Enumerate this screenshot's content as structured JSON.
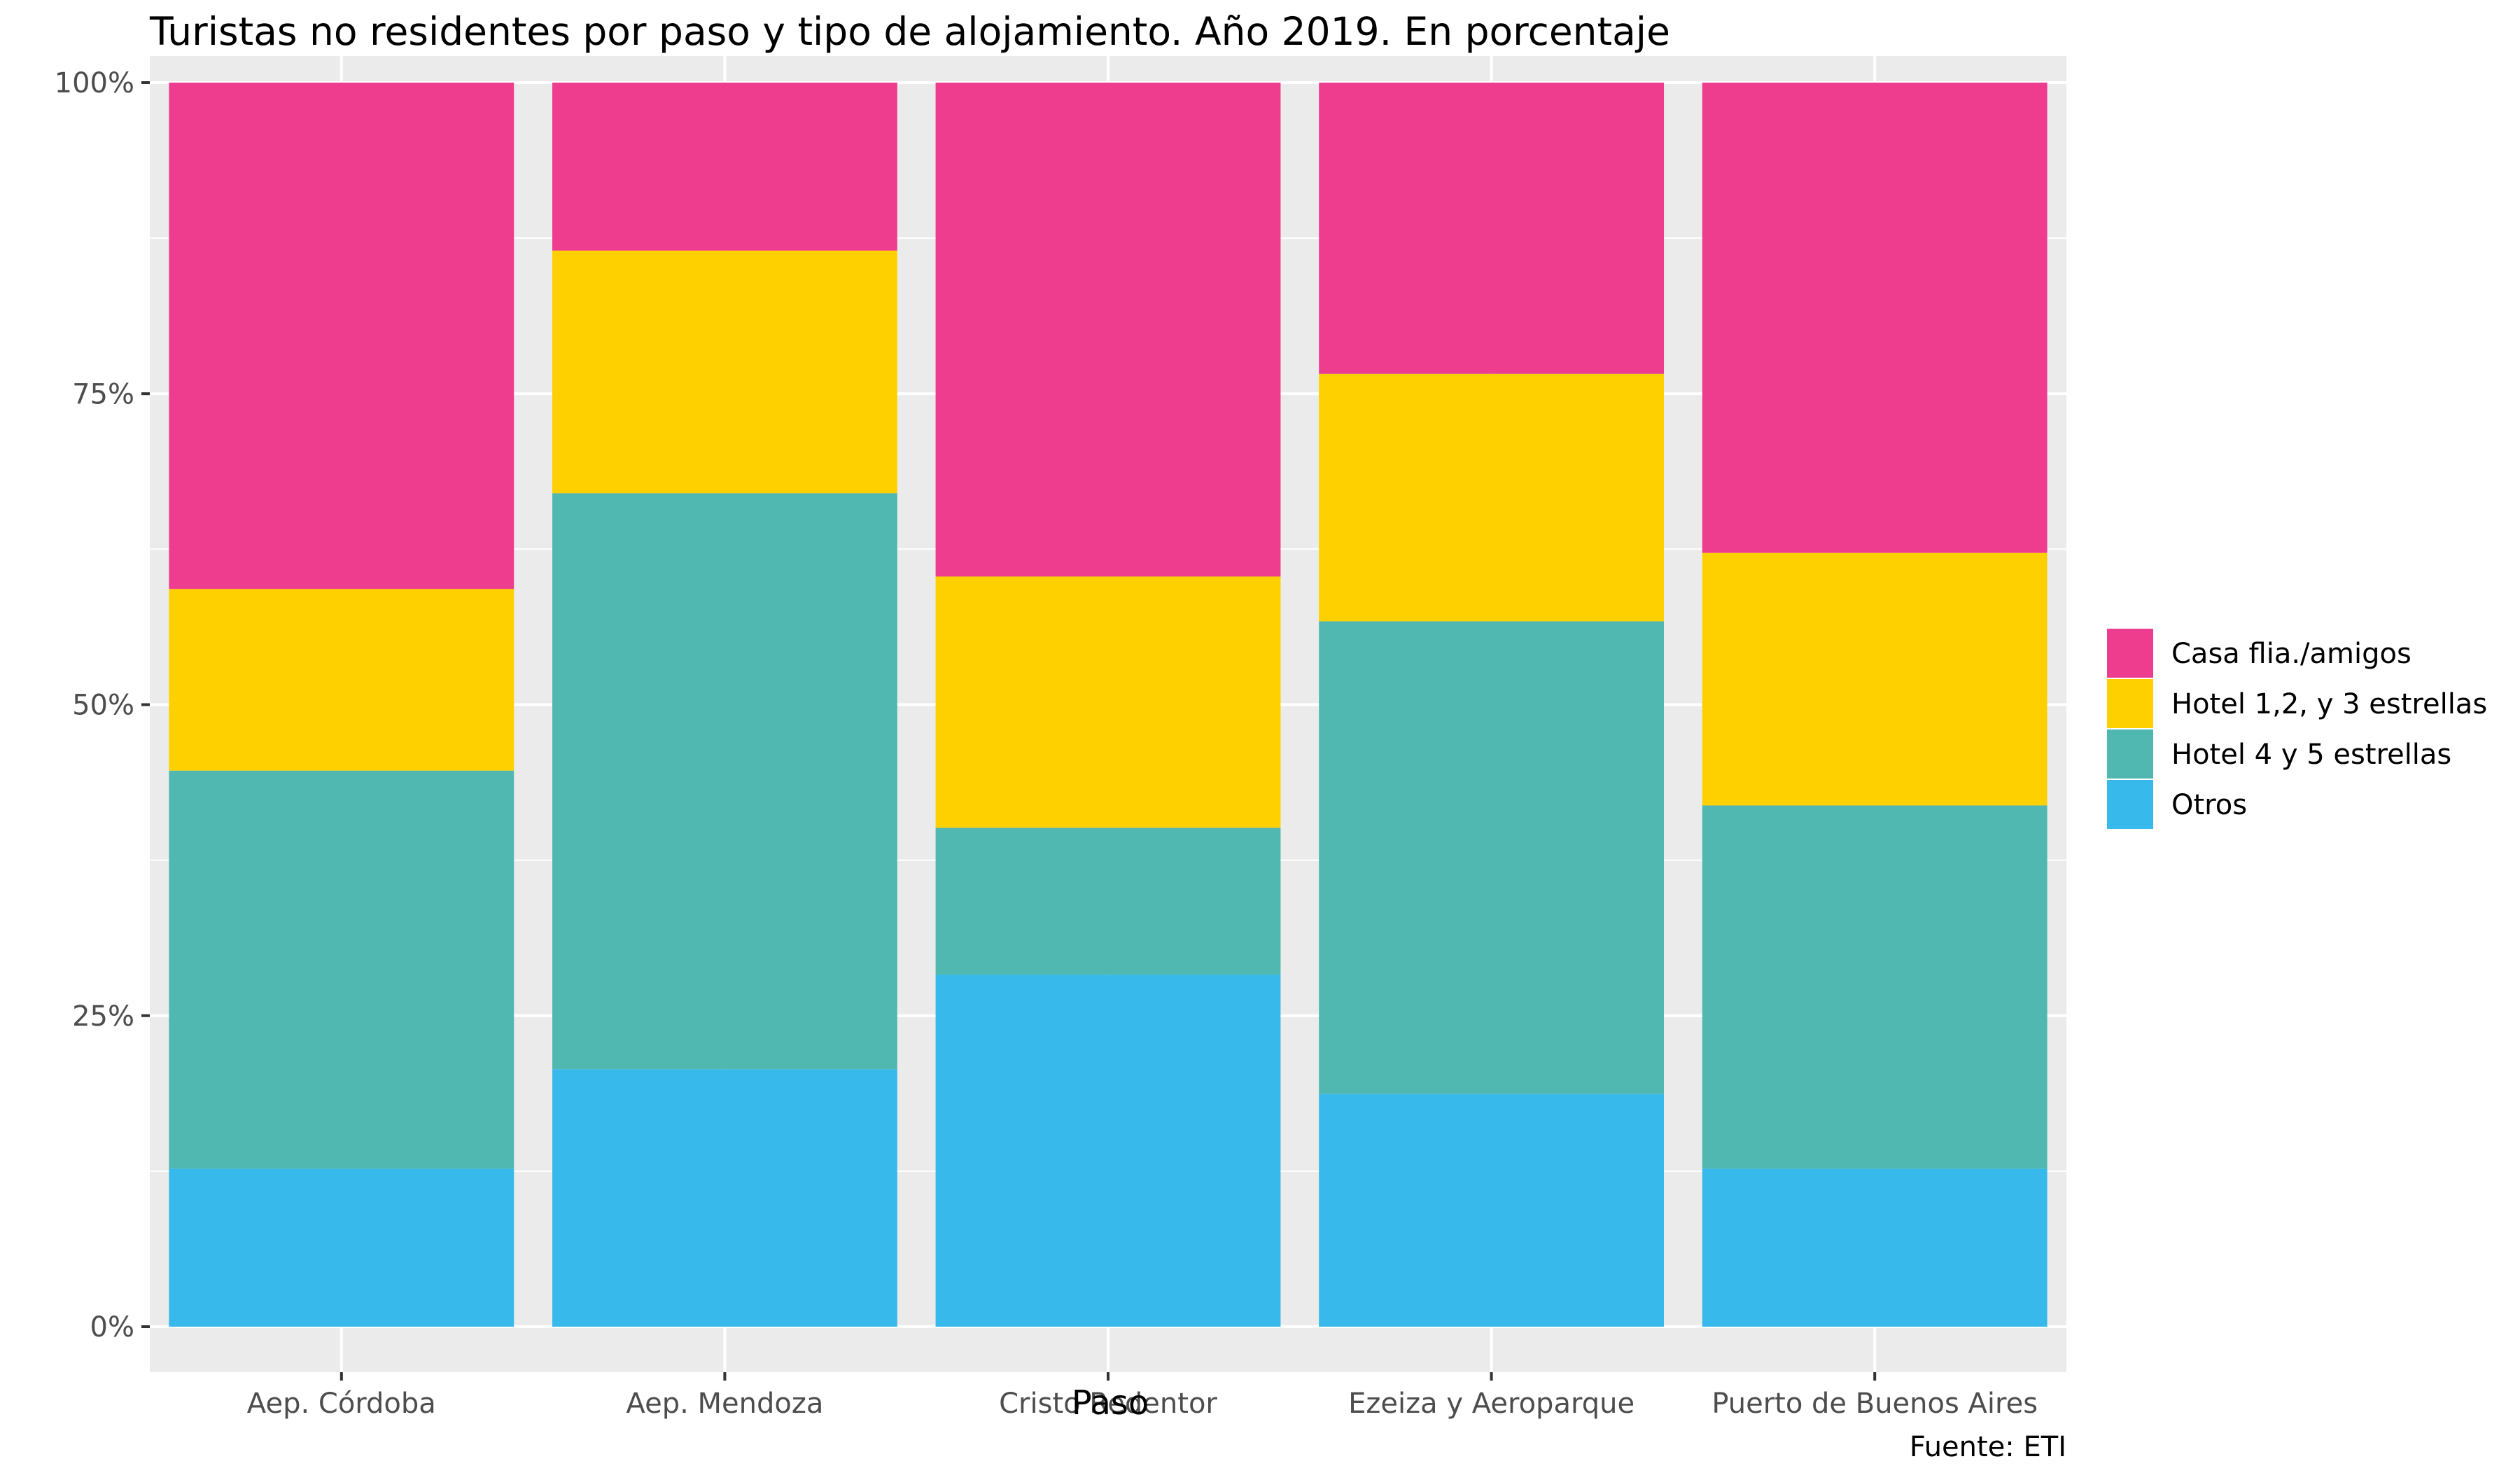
{
  "chart_data": {
    "type": "bar",
    "stacked": true,
    "title": "Turistas no residentes por paso y tipo de alojamiento. Año 2019. En porcentaje",
    "xlabel": "Paso",
    "ylabel": "",
    "caption": "Fuente: ETI",
    "ylim": [
      0,
      100
    ],
    "yticks": [
      0,
      25,
      50,
      75,
      100
    ],
    "ytick_labels": [
      "0%",
      "25%",
      "50%",
      "75%",
      "100%"
    ],
    "grid": true,
    "legend_position": "right",
    "categories": [
      "Aep. Córdoba",
      "Aep. Mendoza",
      "Cristo Redentor",
      "Ezeiza y Aeroparque",
      "Puerto de Buenos Aires"
    ],
    "series": [
      {
        "name": "Otros",
        "color": "#38B9EB",
        "values": [
          12.7,
          20.7,
          28.3,
          18.7,
          12.7
        ]
      },
      {
        "name": "Hotel 4 y 5 estrellas",
        "color": "#50B8B1",
        "values": [
          32.0,
          46.3,
          11.8,
          38.0,
          29.2
        ]
      },
      {
        "name": "Hotel 1,2, y 3 estrellas",
        "color": "#FFD000",
        "values": [
          14.6,
          19.5,
          20.2,
          19.9,
          20.3
        ]
      },
      {
        "name": "Casa flia./amigos",
        "color": "#EE3D8F",
        "values": [
          40.7,
          13.5,
          39.7,
          23.4,
          37.8
        ]
      }
    ],
    "legend_order": [
      "Casa flia./amigos",
      "Hotel 1,2, y 3 estrellas",
      "Hotel 4 y 5 estrellas",
      "Otros"
    ],
    "panel_background": "#EBEBEB",
    "grid_color": "#FFFFFF"
  }
}
